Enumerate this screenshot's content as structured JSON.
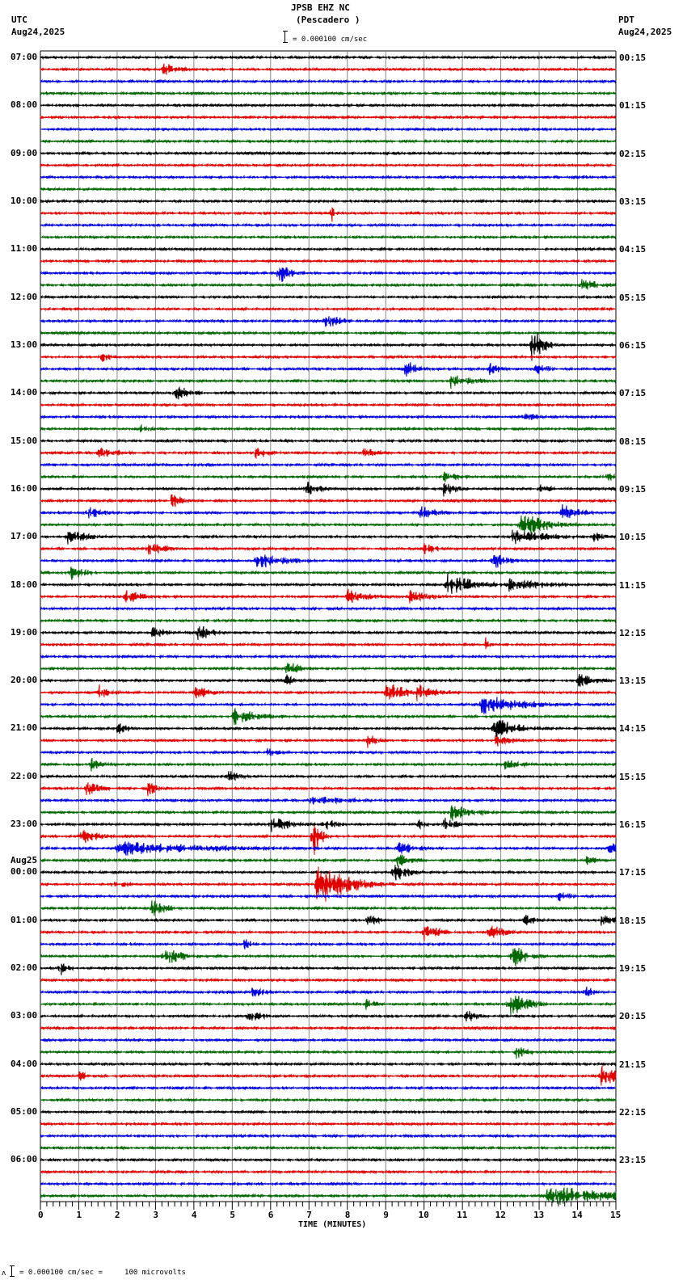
{
  "header": {
    "title": "JPSB EHZ NC",
    "subtitle": "(Pescadero )",
    "left_tz": "UTC",
    "left_date": "Aug24,2025",
    "right_tz": "PDT",
    "right_date": "Aug24,2025",
    "scale_label": "= 0.000100 cm/sec"
  },
  "footer": {
    "scale_prefix": "ʌ",
    "scale_label": "= 0.000100 cm/sec =     100 microvolts"
  },
  "chart_data": {
    "type": "line",
    "title": "JPSB EHZ NC (Pescadero )",
    "xlabel": "TIME (MINUTES)",
    "ylabel": "",
    "xlim": [
      0,
      15
    ],
    "x_ticks": [
      "0",
      "1",
      "2",
      "3",
      "4",
      "5",
      "6",
      "7",
      "8",
      "9",
      "10",
      "11",
      "12",
      "13",
      "14",
      "15"
    ],
    "grid": true,
    "traces_per_hour": 4,
    "trace_colors": [
      "#000000",
      "#e00000",
      "#0000e0",
      "#006600"
    ],
    "left_labels": [
      {
        "row": 0,
        "text": "07:00"
      },
      {
        "row": 4,
        "text": "08:00"
      },
      {
        "row": 8,
        "text": "09:00"
      },
      {
        "row": 12,
        "text": "10:00"
      },
      {
        "row": 16,
        "text": "11:00"
      },
      {
        "row": 20,
        "text": "12:00"
      },
      {
        "row": 24,
        "text": "13:00"
      },
      {
        "row": 28,
        "text": "14:00"
      },
      {
        "row": 32,
        "text": "15:00"
      },
      {
        "row": 36,
        "text": "16:00"
      },
      {
        "row": 40,
        "text": "17:00"
      },
      {
        "row": 44,
        "text": "18:00"
      },
      {
        "row": 48,
        "text": "19:00"
      },
      {
        "row": 52,
        "text": "20:00"
      },
      {
        "row": 56,
        "text": "21:00"
      },
      {
        "row": 60,
        "text": "22:00"
      },
      {
        "row": 64,
        "text": "23:00"
      },
      {
        "row": 68,
        "text": "00:00",
        "date": "Aug25"
      },
      {
        "row": 72,
        "text": "01:00"
      },
      {
        "row": 76,
        "text": "02:00"
      },
      {
        "row": 80,
        "text": "03:00"
      },
      {
        "row": 84,
        "text": "04:00"
      },
      {
        "row": 88,
        "text": "05:00"
      },
      {
        "row": 92,
        "text": "06:00"
      }
    ],
    "right_labels": [
      {
        "row": 0,
        "text": "00:15"
      },
      {
        "row": 4,
        "text": "01:15"
      },
      {
        "row": 8,
        "text": "02:15"
      },
      {
        "row": 12,
        "text": "03:15"
      },
      {
        "row": 16,
        "text": "04:15"
      },
      {
        "row": 20,
        "text": "05:15"
      },
      {
        "row": 24,
        "text": "06:15"
      },
      {
        "row": 28,
        "text": "07:15"
      },
      {
        "row": 32,
        "text": "08:15"
      },
      {
        "row": 36,
        "text": "09:15"
      },
      {
        "row": 40,
        "text": "10:15"
      },
      {
        "row": 44,
        "text": "11:15"
      },
      {
        "row": 48,
        "text": "12:15"
      },
      {
        "row": 52,
        "text": "13:15"
      },
      {
        "row": 56,
        "text": "14:15"
      },
      {
        "row": 60,
        "text": "15:15"
      },
      {
        "row": 64,
        "text": "16:15"
      },
      {
        "row": 68,
        "text": "17:15"
      },
      {
        "row": 72,
        "text": "18:15"
      },
      {
        "row": 76,
        "text": "19:15"
      },
      {
        "row": 80,
        "text": "20:15"
      },
      {
        "row": 84,
        "text": "21:15"
      },
      {
        "row": 88,
        "text": "22:15"
      },
      {
        "row": 92,
        "text": "23:15"
      }
    ],
    "row_count": 96,
    "events": [
      {
        "row": 1,
        "t": 3.2,
        "amp": 10,
        "dur": 0.4
      },
      {
        "row": 13,
        "t": 7.6,
        "amp": 14,
        "dur": 0.05
      },
      {
        "row": 18,
        "t": 6.2,
        "amp": 18,
        "dur": 0.3
      },
      {
        "row": 19,
        "t": 14.1,
        "amp": 12,
        "dur": 0.4
      },
      {
        "row": 22,
        "t": 7.4,
        "amp": 12,
        "dur": 0.4
      },
      {
        "row": 24,
        "t": 12.8,
        "amp": 26,
        "dur": 0.3
      },
      {
        "row": 25,
        "t": 1.5,
        "amp": 9,
        "dur": 0.3
      },
      {
        "row": 26,
        "t": 9.5,
        "amp": 14,
        "dur": 0.3
      },
      {
        "row": 26,
        "t": 11.7,
        "amp": 10,
        "dur": 0.3
      },
      {
        "row": 26,
        "t": 12.9,
        "amp": 12,
        "dur": 0.3
      },
      {
        "row": 27,
        "t": 10.7,
        "amp": 10,
        "dur": 0.6
      },
      {
        "row": 28,
        "t": 3.5,
        "amp": 12,
        "dur": 0.4
      },
      {
        "row": 30,
        "t": 12.6,
        "amp": 8,
        "dur": 0.3
      },
      {
        "row": 31,
        "t": 2.6,
        "amp": 7,
        "dur": 0.3
      },
      {
        "row": 33,
        "t": 1.5,
        "amp": 9,
        "dur": 0.5
      },
      {
        "row": 33,
        "t": 5.6,
        "amp": 9,
        "dur": 0.4
      },
      {
        "row": 33,
        "t": 8.4,
        "amp": 8,
        "dur": 0.4
      },
      {
        "row": 35,
        "t": 14.7,
        "amp": 8,
        "dur": 0.3
      },
      {
        "row": 35,
        "t": 10.5,
        "amp": 9,
        "dur": 0.4
      },
      {
        "row": 36,
        "t": 6.9,
        "amp": 11,
        "dur": 0.4
      },
      {
        "row": 36,
        "t": 10.5,
        "amp": 10,
        "dur": 0.4
      },
      {
        "row": 36,
        "t": 13.0,
        "amp": 8,
        "dur": 0.3
      },
      {
        "row": 37,
        "t": 3.4,
        "amp": 12,
        "dur": 0.3
      },
      {
        "row": 38,
        "t": 1.2,
        "amp": 10,
        "dur": 0.4
      },
      {
        "row": 38,
        "t": 9.9,
        "amp": 10,
        "dur": 0.5
      },
      {
        "row": 38,
        "t": 13.6,
        "amp": 14,
        "dur": 0.4
      },
      {
        "row": 39,
        "t": 12.5,
        "amp": 18,
        "dur": 0.7
      },
      {
        "row": 40,
        "t": 0.7,
        "amp": 10,
        "dur": 0.6
      },
      {
        "row": 40,
        "t": 12.3,
        "amp": 10,
        "dur": 1.0
      },
      {
        "row": 40,
        "t": 14.4,
        "amp": 8,
        "dur": 0.3
      },
      {
        "row": 41,
        "t": 2.8,
        "amp": 9,
        "dur": 0.5
      },
      {
        "row": 41,
        "t": 10.0,
        "amp": 9,
        "dur": 0.3
      },
      {
        "row": 42,
        "t": 5.6,
        "amp": 12,
        "dur": 0.8
      },
      {
        "row": 42,
        "t": 11.8,
        "amp": 12,
        "dur": 0.4
      },
      {
        "row": 43,
        "t": 0.8,
        "amp": 10,
        "dur": 0.4
      },
      {
        "row": 44,
        "t": 10.6,
        "amp": 16,
        "dur": 0.7
      },
      {
        "row": 44,
        "t": 12.2,
        "amp": 10,
        "dur": 1.0
      },
      {
        "row": 45,
        "t": 2.2,
        "amp": 12,
        "dur": 0.4
      },
      {
        "row": 45,
        "t": 8.0,
        "amp": 10,
        "dur": 0.6
      },
      {
        "row": 45,
        "t": 9.6,
        "amp": 10,
        "dur": 0.6
      },
      {
        "row": 48,
        "t": 4.1,
        "amp": 12,
        "dur": 0.4
      },
      {
        "row": 48,
        "t": 2.9,
        "amp": 9,
        "dur": 0.4
      },
      {
        "row": 49,
        "t": 11.6,
        "amp": 14,
        "dur": 0.1
      },
      {
        "row": 51,
        "t": 6.4,
        "amp": 14,
        "dur": 0.3
      },
      {
        "row": 52,
        "t": 6.4,
        "amp": 10,
        "dur": 0.2
      },
      {
        "row": 52,
        "t": 14.0,
        "amp": 10,
        "dur": 0.5
      },
      {
        "row": 53,
        "t": 1.5,
        "amp": 12,
        "dur": 0.3
      },
      {
        "row": 53,
        "t": 4.0,
        "amp": 10,
        "dur": 0.5
      },
      {
        "row": 53,
        "t": 9.0,
        "amp": 16,
        "dur": 0.5
      },
      {
        "row": 53,
        "t": 9.8,
        "amp": 12,
        "dur": 0.6
      },
      {
        "row": 54,
        "t": 11.5,
        "amp": 14,
        "dur": 1.1
      },
      {
        "row": 55,
        "t": 5.0,
        "amp": 12,
        "dur": 0.7
      },
      {
        "row": 56,
        "t": 2.0,
        "amp": 10,
        "dur": 0.3
      },
      {
        "row": 56,
        "t": 11.8,
        "amp": 16,
        "dur": 0.6
      },
      {
        "row": 57,
        "t": 8.5,
        "amp": 12,
        "dur": 0.3
      },
      {
        "row": 57,
        "t": 11.8,
        "amp": 10,
        "dur": 0.5
      },
      {
        "row": 58,
        "t": 5.9,
        "amp": 8,
        "dur": 0.3
      },
      {
        "row": 59,
        "t": 1.3,
        "amp": 10,
        "dur": 0.3
      },
      {
        "row": 59,
        "t": 12.1,
        "amp": 8,
        "dur": 0.5
      },
      {
        "row": 60,
        "t": 4.9,
        "amp": 10,
        "dur": 0.3
      },
      {
        "row": 61,
        "t": 1.2,
        "amp": 10,
        "dur": 0.4
      },
      {
        "row": 61,
        "t": 2.8,
        "amp": 10,
        "dur": 0.3
      },
      {
        "row": 62,
        "t": 7.0,
        "amp": 6,
        "dur": 1.5
      },
      {
        "row": 63,
        "t": 10.7,
        "amp": 12,
        "dur": 0.6
      },
      {
        "row": 64,
        "t": 6.0,
        "amp": 12,
        "dur": 0.6
      },
      {
        "row": 64,
        "t": 7.4,
        "amp": 12,
        "dur": 0.3
      },
      {
        "row": 64,
        "t": 9.8,
        "amp": 8,
        "dur": 0.3
      },
      {
        "row": 64,
        "t": 10.5,
        "amp": 10,
        "dur": 0.4
      },
      {
        "row": 65,
        "t": 7.1,
        "amp": 30,
        "dur": 0.2
      },
      {
        "row": 65,
        "t": 1.0,
        "amp": 12,
        "dur": 0.5
      },
      {
        "row": 66,
        "t": 2.0,
        "amp": 10,
        "dur": 2.5
      },
      {
        "row": 66,
        "t": 9.3,
        "amp": 10,
        "dur": 0.5
      },
      {
        "row": 66,
        "t": 14.8,
        "amp": 12,
        "dur": 0.3
      },
      {
        "row": 67,
        "t": 9.3,
        "amp": 10,
        "dur": 0.4
      },
      {
        "row": 67,
        "t": 14.2,
        "amp": 8,
        "dur": 0.3
      },
      {
        "row": 68,
        "t": 9.2,
        "amp": 14,
        "dur": 0.4
      },
      {
        "row": 69,
        "t": 7.2,
        "amp": 30,
        "dur": 0.8
      },
      {
        "row": 69,
        "t": 1.9,
        "amp": 8,
        "dur": 0.3
      },
      {
        "row": 70,
        "t": 13.5,
        "amp": 10,
        "dur": 0.3
      },
      {
        "row": 71,
        "t": 2.9,
        "amp": 12,
        "dur": 0.4
      },
      {
        "row": 72,
        "t": 8.5,
        "amp": 10,
        "dur": 0.3
      },
      {
        "row": 72,
        "t": 12.6,
        "amp": 10,
        "dur": 0.3
      },
      {
        "row": 72,
        "t": 14.6,
        "amp": 8,
        "dur": 0.4
      },
      {
        "row": 73,
        "t": 10.0,
        "amp": 12,
        "dur": 0.4
      },
      {
        "row": 73,
        "t": 11.7,
        "amp": 12,
        "dur": 0.4
      },
      {
        "row": 74,
        "t": 5.3,
        "amp": 10,
        "dur": 0.2
      },
      {
        "row": 75,
        "t": 3.2,
        "amp": 14,
        "dur": 0.5
      },
      {
        "row": 75,
        "t": 12.3,
        "amp": 16,
        "dur": 0.4
      },
      {
        "row": 76,
        "t": 0.5,
        "amp": 12,
        "dur": 0.2
      },
      {
        "row": 78,
        "t": 5.5,
        "amp": 10,
        "dur": 0.3
      },
      {
        "row": 78,
        "t": 14.2,
        "amp": 9,
        "dur": 0.3
      },
      {
        "row": 79,
        "t": 8.4,
        "amp": 10,
        "dur": 0.3
      },
      {
        "row": 79,
        "t": 12.2,
        "amp": 18,
        "dur": 0.5
      },
      {
        "row": 80,
        "t": 5.4,
        "amp": 10,
        "dur": 0.4
      },
      {
        "row": 80,
        "t": 11.1,
        "amp": 10,
        "dur": 0.3
      },
      {
        "row": 83,
        "t": 12.4,
        "amp": 10,
        "dur": 0.3
      },
      {
        "row": 85,
        "t": 14.6,
        "amp": 14,
        "dur": 0.6
      },
      {
        "row": 85,
        "t": 1.0,
        "amp": 8,
        "dur": 0.3
      },
      {
        "row": 95,
        "t": 13.2,
        "amp": 14,
        "dur": 1.8
      }
    ]
  }
}
